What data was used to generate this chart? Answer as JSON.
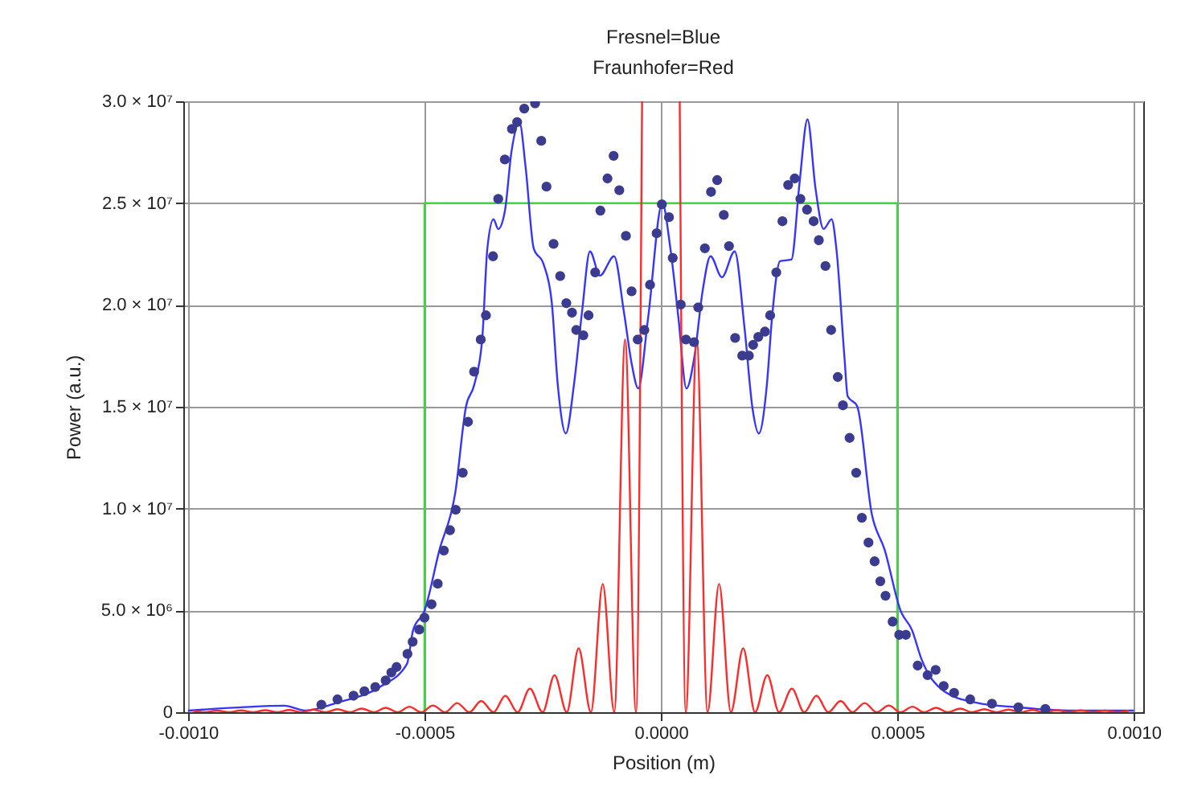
{
  "chart_data": {
    "type": "line",
    "title": "Fresnel=Blue",
    "subtitle": "Fraunhofer=Red",
    "xlabel": "Position (m)",
    "ylabel": "Power (a.u.)",
    "xlim": [
      -0.00101,
      0.00102
    ],
    "ylim": [
      0,
      30000000
    ],
    "xticks": [
      {
        "value": -0.001,
        "label": "-0.0010"
      },
      {
        "value": -0.0005,
        "label": "-0.0005"
      },
      {
        "value": 0,
        "label": "0.0000"
      },
      {
        "value": 0.0005,
        "label": "0.0005"
      },
      {
        "value": 0.001,
        "label": "0.0010"
      }
    ],
    "yticks": [
      0,
      {
        "value": 5000000,
        "label": "5.0 × 10⁶"
      },
      {
        "value": 10000000,
        "label": "1.0 × 10⁷"
      },
      {
        "value": 15000000,
        "label": "1.5 × 10⁷"
      },
      {
        "value": 20000000,
        "label": "2.0 × 10⁷"
      },
      {
        "value": 25000000,
        "label": "2.5 × 10⁷"
      },
      {
        "value": 30000000,
        "label": "3.0 × 10⁷"
      }
    ],
    "grid": true,
    "series": [
      {
        "color": "#33dd33",
        "x": [
          -0.0005,
          -0.0005,
          0.0005,
          0.0005
        ],
        "values": [
          0,
          25000000.0,
          25000000.0,
          0
        ]
      },
      {
        "color": "#3535ff",
        "x": [
          -0.001,
          -0.000888,
          -0.000796,
          -0.000752,
          -0.000684,
          -0.000592,
          -0.000537,
          -0.000524,
          -0.0005,
          -0.000469,
          -0.000435,
          -0.000412,
          -0.000395,
          -0.000378,
          -0.000367,
          -0.000354,
          -0.000344,
          -0.00033,
          -0.000316,
          -0.000299,
          -0.000286,
          -0.000269,
          -0.000248,
          -0.000231,
          -0.000218,
          -0.000201,
          -0.000184,
          -0.000167,
          -0.00015,
          -0.000129,
          -9.9e-05,
          -7.8e-05,
          -6.1e-05,
          -4.8e-05,
          -2.7e-05,
          3e-06,
          2e-05,
          3.7e-05,
          5.4e-05,
          7.1e-05,
          8.8e-05,
          0.000105,
          0.000129,
          0.000156,
          0.000177,
          0.000194,
          0.000207,
          0.000224,
          0.000235,
          0.000252,
          0.000276,
          0.000293,
          0.00031,
          0.000327,
          0.000344,
          0.000361,
          0.000371,
          0.000388,
          0.000395,
          0.000415,
          0.000446,
          0.000473,
          0.000507,
          0.000531,
          0.000551,
          0.000599,
          0.000667,
          0.000755,
          0.000871,
          0.001
        ],
        "values": [
          80000.0,
          240000.0,
          320000.0,
          80000.0,
          470000.0,
          1270000.0,
          2370000.0,
          4030000.0,
          4980000.0,
          7910000.0,
          10760000.0,
          15030000.0,
          16060000.0,
          18280000.0,
          22780000.0,
          24210000.0,
          23730000.0,
          24600000.0,
          27530000.0,
          28960000.0,
          26740000.0,
          22780000.0,
          21990000.0,
          20170000.0,
          16060000.0,
          13690000.0,
          16060000.0,
          19620000.0,
          22630000.0,
          21440000.0,
          22390000.0,
          19620000.0,
          17010000.0,
          15900000.0,
          19380000.0,
          25000000.0,
          22780000.0,
          19380000.0,
          15900000.0,
          17480000.0,
          20650000.0,
          22390000.0,
          21360000.0,
          22630000.0,
          18830000.0,
          14870000.0,
          13690000.0,
          16060000.0,
          19380000.0,
          22150000.0,
          22230000.0,
          25950000.0,
          29110000.0,
          25710000.0,
          23730000.0,
          24210000.0,
          22780000.0,
          17480000.0,
          15510000.0,
          15030000.0,
          9730000.0,
          7990000.0,
          4980000.0,
          4030000.0,
          2610000.0,
          1030000.0,
          470000.0,
          240000.0,
          80000.0,
          80000.0
        ]
      },
      {
        "color": "#ff2a2a",
        "x": [
          -0.00099,
          -0.000964,
          -0.000939,
          -0.000913,
          -0.000888,
          -0.000862,
          -0.000837,
          -0.000811,
          -0.000786,
          -0.00076,
          -0.000735,
          -0.000709,
          -0.000684,
          -0.000658,
          -0.000633,
          -0.000607,
          -0.000582,
          -0.000556,
          -0.000532,
          -0.000507,
          -0.000482,
          -0.000456,
          -0.000431,
          -0.000405,
          -0.00038,
          -0.000354,
          -0.000329,
          -0.000303,
          -0.000277,
          -0.00025,
          -0.000225,
          -0.000199,
          -0.000174,
          -0.000148,
          -0.000123,
          -9.86e-05,
          -7.57e-05,
          -5.27e-05,
          -3.98e-05,
          0,
          3.98e-05,
          5.27e-05,
          7.57e-05,
          9.86e-05,
          0.000123,
          0.000148,
          0.000174,
          0.000199,
          0.000225,
          0.00025,
          0.000277,
          0.000303,
          0.000329,
          0.000354,
          0.00038,
          0.000405,
          0.000431,
          0.000456,
          0.000482,
          0.000507,
          0.000532,
          0.000556,
          0.000582,
          0.000607,
          0.000633,
          0.000658,
          0.000684,
          0.000709,
          0.000735,
          0.00076,
          0.000786,
          0.000811,
          0.000837,
          0.000862,
          0.000888,
          0.000913,
          0.000939,
          0.000964,
          0.00099
        ],
        "values": [
          70000.0,
          0,
          80000.0,
          0,
          90000.0,
          0,
          100000.0,
          0,
          110000.0,
          0,
          130000.0,
          0,
          150000.0,
          0,
          180000.0,
          0,
          220000.0,
          0,
          270000.0,
          0,
          330000.0,
          0,
          450000.0,
          0,
          550000.0,
          0,
          810000.0,
          0,
          1160000.0,
          0,
          1820000.0,
          0,
          3140000.0,
          0,
          6300000.0,
          0,
          18300000.0,
          0,
          30000000.0,
          null,
          30000000.0,
          0,
          18300000.0,
          0,
          6300000.0,
          0,
          3140000.0,
          0,
          1820000.0,
          0,
          1160000.0,
          0,
          810000.0,
          0,
          550000.0,
          0,
          450000.0,
          0,
          330000.0,
          0,
          270000.0,
          0,
          220000.0,
          0,
          180000.0,
          0,
          150000.0,
          0,
          130000.0,
          0,
          110000.0,
          0,
          100000.0,
          0,
          90000.0,
          0,
          80000.0,
          0,
          70000.0
        ]
      },
      {
        "type": "scatter",
        "marker": "circle",
        "color": "#3b3b8f",
        "x": [
          -0.000718,
          -0.000684,
          -0.00065,
          -0.000627,
          -0.000604,
          -0.000582,
          -0.00057,
          -0.000559,
          -0.000536,
          -0.000525,
          -0.000511,
          -0.0005,
          -0.000485,
          -0.000472,
          -0.000459,
          -0.000446,
          -0.000434,
          -0.000419,
          -0.000408,
          -0.000395,
          -0.000381,
          -0.00037,
          -0.000355,
          -0.000344,
          -0.00033,
          -0.000315,
          -0.000304,
          -0.000289,
          -0.000266,
          -0.000253,
          -0.000242,
          -0.000227,
          -0.000213,
          -0.0002,
          -0.000188,
          -0.000179,
          -0.000164,
          -0.000153,
          -0.000139,
          -0.000128,
          -0.000113,
          -0.0001,
          -8.8e-05,
          -7.4e-05,
          -6.2e-05,
          -4.9e-05,
          -3.5e-05,
          -2.3e-05,
          -9e-06,
          2e-06,
          1.7e-05,
          2.5e-05,
          4.2e-05,
          5.3e-05,
          7e-05,
          7.9e-05,
          9.3e-05,
          0.000106,
          0.000119,
          0.000133,
          0.000144,
          0.000157,
          0.000172,
          0.000186,
          0.000195,
          0.000206,
          0.00022,
          0.000231,
          0.000244,
          0.000257,
          0.000269,
          0.000283,
          0.000295,
          0.000309,
          0.000323,
          0.000334,
          0.000348,
          0.00036,
          0.000374,
          0.000385,
          0.000399,
          0.000413,
          0.000425,
          0.000439,
          0.000452,
          0.000464,
          0.000475,
          0.00049,
          0.000504,
          0.000518,
          0.000543,
          0.000564,
          0.000581,
          0.000598,
          0.00062,
          0.000654,
          0.0007,
          0.000756,
          0.000813
        ],
        "values": [
          370000.0,
          630000.0,
          810000.0,
          1030000.0,
          1240000.0,
          1560000.0,
          1950000.0,
          2220000.0,
          2870000.0,
          3460000.0,
          4060000.0,
          4640000.0,
          5300000.0,
          6310000.0,
          7940000.0,
          8940000.0,
          9940000.0,
          11760000.0,
          14260000.0,
          16720000.0,
          18300000.0,
          19490000.0,
          22390000.0,
          25210000.0,
          27140000.0,
          28640000.0,
          28980000.0,
          29640000.0,
          29900000.0,
          28060000.0,
          25810000.0,
          23000000.0,
          21420000.0,
          20090000.0,
          19620000.0,
          18770000.0,
          18510000.0,
          19490000.0,
          21600000.0,
          24630000.0,
          26210000.0,
          27320000.0,
          25630000.0,
          23390000.0,
          20670000.0,
          18300000.0,
          18770000.0,
          20990000.0,
          23520000.0,
          24940000.0,
          24310000.0,
          22310000.0,
          20020000.0,
          18300000.0,
          18170000.0,
          19880000.0,
          22780000.0,
          25550000.0,
          26130000.0,
          24420000.0,
          22890000.0,
          18380000.0,
          17510000.0,
          17510000.0,
          18040000.0,
          18430000.0,
          18690000.0,
          19490000.0,
          21600000.0,
          24110000.0,
          25890000.0,
          26210000.0,
          25210000.0,
          24680000.0,
          24110000.0,
          23180000.0,
          21910000.0,
          18770000.0,
          16460000.0,
          15070000.0,
          13470000.0,
          11760000.0,
          9550000.0,
          8330000.0,
          7410000.0,
          6430000.0,
          5720000.0,
          4450000.0,
          3800000.0,
          3800000.0,
          2290000.0,
          1820000.0,
          2080000.0,
          1290000.0,
          950000.0,
          630000.0,
          420000.0,
          240000.0,
          160000.0
        ]
      }
    ]
  }
}
